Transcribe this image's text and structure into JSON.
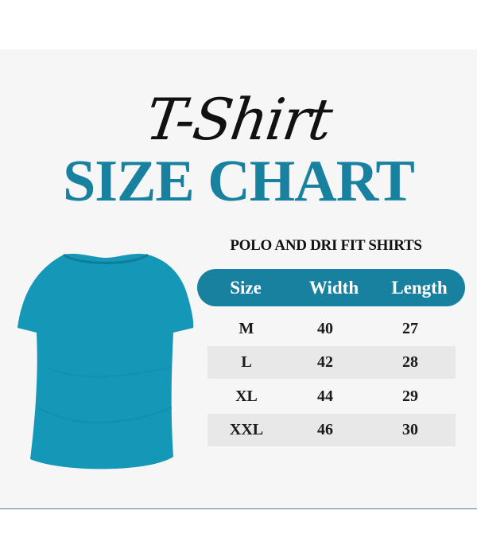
{
  "header": {
    "script_title": "T-Shirt",
    "title": "SIZE CHART"
  },
  "table": {
    "subtitle": "POLO AND DRI FIT SHIRTS",
    "columns": [
      "Size",
      "Width",
      "Length"
    ],
    "rows": [
      [
        "M",
        "40",
        "27"
      ],
      [
        "L",
        "42",
        "28"
      ],
      [
        "XL",
        "44",
        "29"
      ],
      [
        "XXL",
        "46",
        "30"
      ]
    ]
  },
  "colors": {
    "accent": "#17819f",
    "shirt": "#1597b8",
    "row_alt": "#e8e8e8",
    "background": "#f6f6f6"
  }
}
